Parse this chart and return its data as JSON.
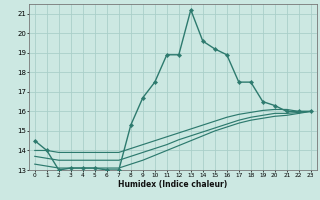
{
  "xlabel": "Humidex (Indice chaleur)",
  "x_main": [
    0,
    1,
    2,
    3,
    4,
    5,
    6,
    7,
    8,
    9,
    10,
    11,
    12,
    13,
    14,
    15,
    16,
    17,
    18,
    19,
    20,
    21,
    22,
    23
  ],
  "y_main": [
    14.5,
    14.0,
    13.0,
    13.1,
    13.1,
    13.1,
    13.0,
    13.0,
    15.3,
    16.7,
    17.5,
    18.9,
    18.9,
    21.2,
    19.6,
    19.2,
    18.9,
    17.5,
    17.5,
    16.5,
    16.3,
    16.0,
    16.0,
    16.0
  ],
  "y_line1": [
    14.0,
    14.0,
    13.9,
    13.9,
    13.9,
    13.9,
    13.9,
    13.9,
    14.1,
    14.3,
    14.5,
    14.7,
    14.9,
    15.1,
    15.3,
    15.5,
    15.7,
    15.85,
    15.95,
    16.05,
    16.1,
    16.1,
    16.0,
    16.0
  ],
  "y_line2": [
    13.7,
    13.6,
    13.5,
    13.5,
    13.5,
    13.5,
    13.5,
    13.5,
    13.7,
    13.9,
    14.1,
    14.3,
    14.55,
    14.75,
    14.95,
    15.15,
    15.35,
    15.55,
    15.7,
    15.8,
    15.9,
    15.9,
    15.95,
    16.0
  ],
  "y_line3": [
    13.3,
    13.2,
    13.1,
    13.1,
    13.1,
    13.1,
    13.1,
    13.1,
    13.3,
    13.5,
    13.75,
    14.0,
    14.25,
    14.5,
    14.75,
    15.0,
    15.2,
    15.4,
    15.55,
    15.65,
    15.75,
    15.8,
    15.9,
    16.0
  ],
  "line_color": "#2d7a6e",
  "bg_color": "#cce8e2",
  "grid_color": "#aacfc9",
  "ylim": [
    13,
    21.5
  ],
  "xlim": [
    -0.5,
    23.5
  ],
  "yticks": [
    13,
    14,
    15,
    16,
    17,
    18,
    19,
    20,
    21
  ],
  "xticks": [
    0,
    1,
    2,
    3,
    4,
    5,
    6,
    7,
    8,
    9,
    10,
    11,
    12,
    13,
    14,
    15,
    16,
    17,
    18,
    19,
    20,
    21,
    22,
    23
  ],
  "marker_size": 2.2,
  "line_width": 1.0
}
